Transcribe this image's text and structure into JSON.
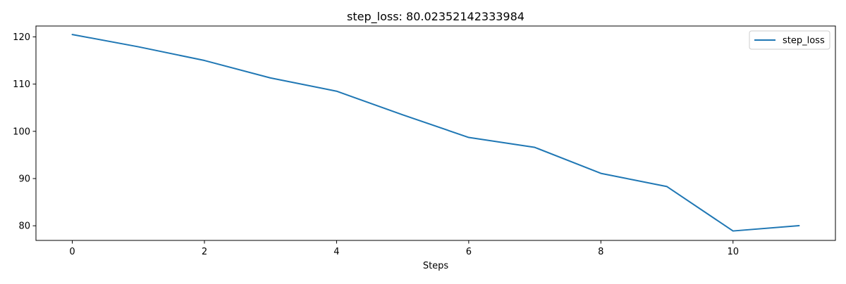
{
  "chart_data": {
    "type": "line",
    "title": "step_loss: 80.02352142333984",
    "xlabel": "Steps",
    "ylabel": "",
    "xlim": [
      -0.55,
      11.55
    ],
    "ylim": [
      76.9,
      122.3
    ],
    "xticks": [
      0,
      2,
      4,
      6,
      8,
      10
    ],
    "yticks": [
      80,
      90,
      100,
      110,
      120
    ],
    "grid": false,
    "legend": {
      "position": "top-right"
    },
    "series": [
      {
        "name": "step_loss",
        "color": "#1f77b4",
        "x": [
          0,
          1,
          2,
          3,
          4,
          5,
          6,
          7,
          8,
          9,
          10,
          11
        ],
        "y": [
          120.5,
          117.9,
          115.0,
          111.3,
          108.5,
          103.5,
          98.7,
          96.6,
          91.1,
          88.3,
          78.9,
          80.02
        ]
      }
    ]
  }
}
